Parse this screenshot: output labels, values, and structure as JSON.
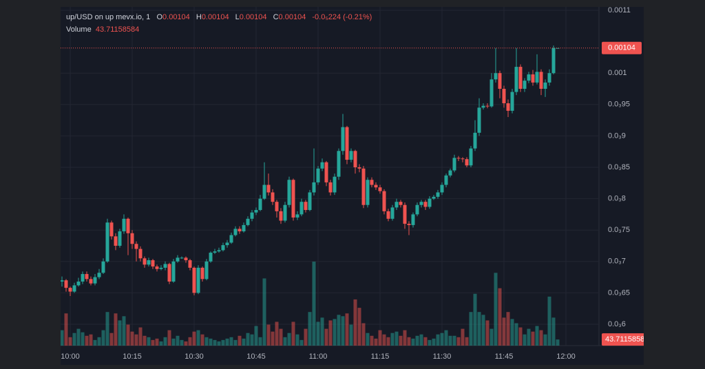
{
  "chart_data": {
    "type": "candlestick",
    "title": "up/USD on up mevx.io, 1",
    "ohlc_letters": [
      "O",
      "H",
      "L",
      "C"
    ],
    "change": "-0.0₅224 (-0.21%)",
    "volume_label": "Volume",
    "up_color": "#26a69a",
    "down_color": "#ef5350",
    "grid": true,
    "categories": [
      null,
      null,
      "10:00",
      null,
      null,
      null,
      null,
      null,
      null,
      null,
      null,
      null,
      null,
      null,
      null,
      null,
      null,
      "10:15",
      null,
      null,
      null,
      null,
      null,
      null,
      null,
      null,
      null,
      null,
      null,
      null,
      null,
      null,
      "10:30",
      null,
      null,
      null,
      null,
      null,
      null,
      null,
      null,
      null,
      null,
      null,
      null,
      null,
      null,
      "10:45",
      null,
      null,
      null,
      null,
      null,
      null,
      null,
      null,
      null,
      null,
      null,
      null,
      null,
      null,
      "11:00",
      null,
      null,
      null,
      null,
      null,
      null,
      null,
      null,
      null,
      null,
      null,
      null,
      null,
      null,
      "11:15",
      null,
      null,
      null,
      null,
      null,
      null,
      null,
      null,
      null,
      null,
      null,
      null,
      null,
      null,
      "11:30",
      null,
      null,
      null,
      null,
      null,
      null,
      null,
      null,
      null,
      null,
      null,
      null,
      null,
      null,
      "11:45",
      null,
      null,
      null,
      null,
      null,
      null,
      null,
      null,
      null,
      null,
      null,
      null,
      null,
      null,
      "12:00"
    ],
    "open": [
      0.000668,
      0.00067,
      0.000658,
      0.000652,
      0.000662,
      0.000668,
      0.00068,
      0.000672,
      0.000665,
      0.000675,
      0.000682,
      0.0007,
      0.000762,
      0.00074,
      0.000725,
      0.000748,
      0.000768,
      0.000745,
      0.000728,
      0.00072,
      0.000705,
      0.000695,
      0.000702,
      0.000692,
      0.000688,
      0.00069,
      0.000696,
      0.000668,
      0.0007,
      0.000706,
      0.000706,
      0.000702,
      0.00069,
      0.00065,
      0.00069,
      0.000672,
      0.0007,
      0.000714,
      0.000716,
      0.000718,
      0.000726,
      0.00073,
      0.000742,
      0.000752,
      0.000748,
      0.000758,
      0.000768,
      0.000778,
      0.000782,
      0.0008,
      0.000822,
      0.00081,
      0.000795,
      0.00078,
      0.000765,
      0.00079,
      0.00083,
      0.00077,
      0.000775,
      0.000795,
      0.000782,
      0.00081,
      0.000826,
      0.000848,
      0.000858,
      0.000826,
      0.00081,
      0.000835,
      0.000876,
      0.000914,
      0.000862,
      0.000876,
      0.00085,
      0.000848,
      0.00079,
      0.00083,
      0.000822,
      0.000818,
      0.000812,
      0.00078,
      0.000768,
      0.000786,
      0.000795,
      0.00079,
      0.00076,
      0.000758,
      0.000775,
      0.00079,
      0.000795,
      0.000787,
      0.0008,
      0.000803,
      0.00081,
      0.000822,
      0.000837,
      0.000845,
      0.000865,
      0.000864,
      0.000863,
      0.000853,
      0.00088,
      0.000905,
      0.000945,
      0.000948,
      0.000947,
      0.00099,
      0.001,
      0.000975,
      0.000952,
      0.00094,
      0.00097,
      0.00101,
      0.000975,
      0.000988,
      0.000998,
      0.000985,
      0.001002,
      0.000975,
      0.000985,
      0.001,
      0.00104,
      null,
      null
    ],
    "high": [
      0.000676,
      0.000672,
      0.00066,
      0.000666,
      0.000674,
      0.000684,
      0.000684,
      0.000676,
      0.00068,
      0.000688,
      0.000705,
      0.000768,
      0.000765,
      0.000745,
      0.000752,
      0.000775,
      0.00077,
      0.00075,
      0.000732,
      0.000724,
      0.000708,
      0.000706,
      0.000704,
      0.000695,
      0.000694,
      0.0007,
      0.000698,
      0.000704,
      0.00071,
      0.000708,
      0.000708,
      0.000704,
      0.000692,
      0.000694,
      0.000692,
      0.000704,
      0.000716,
      0.00072,
      0.000722,
      0.00073,
      0.000734,
      0.000746,
      0.000756,
      0.000756,
      0.000762,
      0.000772,
      0.000782,
      0.000786,
      0.000806,
      0.000858,
      0.00084,
      0.000815,
      0.000798,
      0.000785,
      0.000795,
      0.000835,
      0.000832,
      0.00078,
      0.0008,
      0.000798,
      0.000814,
      0.00088,
      0.000852,
      0.000864,
      0.00086,
      0.00083,
      0.00084,
      0.00088,
      0.000935,
      0.000916,
      0.00088,
      0.000878,
      0.000855,
      0.000852,
      0.000834,
      0.000834,
      0.000826,
      0.000822,
      0.000815,
      0.000784,
      0.00079,
      0.0008,
      0.000798,
      0.000794,
      0.000764,
      0.000778,
      0.000794,
      0.000798,
      0.000798,
      0.000804,
      0.000806,
      0.000814,
      0.000826,
      0.00084,
      0.000848,
      0.00087,
      0.000868,
      0.000866,
      0.000866,
      0.000884,
      0.000925,
      0.00096,
      0.000952,
      0.000952,
      0.001,
      0.00104,
      0.001004,
      0.00098,
      0.000958,
      0.000975,
      0.00104,
      0.001014,
      0.000992,
      0.001002,
      0.001005,
      0.00103,
      0.001006,
      0.00099,
      0.001006,
      0.001044,
      0.00104,
      null,
      null
    ],
    "low": [
      0.00066,
      0.000652,
      0.000645,
      0.00065,
      0.00066,
      0.000664,
      0.000668,
      0.000662,
      0.000662,
      0.000672,
      0.00068,
      0.000698,
      0.000735,
      0.000718,
      0.000722,
      0.000744,
      0.00071,
      0.00072,
      0.0007,
      0.0007,
      0.00069,
      0.000692,
      0.000688,
      0.000684,
      0.000686,
      0.000686,
      0.000664,
      0.000666,
      0.000698,
      0.000704,
      0.000698,
      0.000686,
      0.000646,
      0.000648,
      0.000668,
      0.00067,
      0.000698,
      0.000712,
      0.000714,
      0.000716,
      0.000722,
      0.000728,
      0.00074,
      0.000744,
      0.000746,
      0.000756,
      0.000764,
      0.000774,
      0.00078,
      0.000798,
      0.000805,
      0.00079,
      0.00077,
      0.00076,
      0.000762,
      0.000786,
      0.000765,
      0.000766,
      0.000772,
      0.000778,
      0.00078,
      0.000805,
      0.000822,
      0.000844,
      0.00082,
      0.000805,
      0.000806,
      0.00083,
      0.00087,
      0.000855,
      0.000858,
      0.00084,
      0.000842,
      0.000785,
      0.000786,
      0.000818,
      0.000814,
      0.000808,
      0.000775,
      0.000764,
      0.000765,
      0.000782,
      0.000786,
      0.000752,
      0.000742,
      0.000754,
      0.000772,
      0.000786,
      0.000782,
      0.000784,
      0.000798,
      0.0008,
      0.000806,
      0.000818,
      0.000834,
      0.000842,
      0.00086,
      0.000858,
      0.00085,
      0.00085,
      0.000876,
      0.0009,
      0.000942,
      0.000944,
      0.000945,
      0.000985,
      0.00096,
      0.000945,
      0.00093,
      0.000936,
      0.000965,
      0.00097,
      0.00097,
      0.000984,
      0.00098,
      0.000982,
      0.000965,
      0.000962,
      0.00098,
      0.000998,
      0.00104,
      null,
      null
    ],
    "close": [
      0.00067,
      0.000658,
      0.000652,
      0.000662,
      0.000668,
      0.00068,
      0.000672,
      0.000665,
      0.000675,
      0.000682,
      0.0007,
      0.000762,
      0.00074,
      0.000725,
      0.000748,
      0.000768,
      0.000745,
      0.000728,
      0.00072,
      0.000705,
      0.000695,
      0.000702,
      0.000692,
      0.000688,
      0.00069,
      0.000696,
      0.000668,
      0.0007,
      0.000706,
      0.000706,
      0.000702,
      0.00069,
      0.00065,
      0.00069,
      0.000672,
      0.0007,
      0.000714,
      0.000716,
      0.000718,
      0.000726,
      0.00073,
      0.000742,
      0.000752,
      0.000748,
      0.000758,
      0.000768,
      0.000778,
      0.000782,
      0.0008,
      0.000822,
      0.00081,
      0.000795,
      0.00078,
      0.000765,
      0.00079,
      0.00083,
      0.00077,
      0.000775,
      0.000795,
      0.000782,
      0.00081,
      0.000826,
      0.000848,
      0.000858,
      0.000826,
      0.00081,
      0.000835,
      0.000876,
      0.000914,
      0.000862,
      0.000876,
      0.00085,
      0.000848,
      0.00079,
      0.00083,
      0.000822,
      0.000818,
      0.000812,
      0.00078,
      0.000768,
      0.000786,
      0.000795,
      0.00079,
      0.00076,
      0.000758,
      0.000775,
      0.00079,
      0.000795,
      0.000787,
      0.0008,
      0.000803,
      0.00081,
      0.000822,
      0.000837,
      0.000845,
      0.000865,
      0.000864,
      0.000863,
      0.000853,
      0.00088,
      0.000905,
      0.000945,
      0.000948,
      0.000947,
      0.00099,
      0.001,
      0.000975,
      0.000952,
      0.00094,
      0.00097,
      0.00101,
      0.000975,
      0.000988,
      0.000998,
      0.000985,
      0.001002,
      0.000975,
      0.000985,
      0.001,
      0.00104,
      0.00104,
      null,
      null
    ],
    "volume": [
      110,
      230,
      60,
      90,
      120,
      95,
      70,
      80,
      40,
      60,
      110,
      240,
      90,
      230,
      180,
      210,
      150,
      100,
      80,
      130,
      70,
      60,
      40,
      50,
      30,
      60,
      110,
      50,
      70,
      40,
      30,
      60,
      100,
      110,
      80,
      60,
      50,
      40,
      30,
      40,
      50,
      60,
      40,
      70,
      50,
      90,
      80,
      140,
      60,
      480,
      150,
      100,
      170,
      120,
      60,
      90,
      170,
      80,
      40,
      120,
      240,
      600,
      170,
      200,
      120,
      180,
      190,
      220,
      210,
      230,
      150,
      330,
      270,
      160,
      90,
      70,
      50,
      110,
      80,
      60,
      90,
      100,
      70,
      110,
      60,
      50,
      70,
      80,
      60,
      40,
      50,
      80,
      90,
      110,
      70,
      70,
      60,
      120,
      60,
      240,
      370,
      240,
      220,
      180,
      120,
      520,
      410,
      200,
      240,
      190,
      160,
      130,
      80,
      120,
      100,
      140,
      110,
      80,
      350,
      200,
      43.71158584,
      null,
      null
    ],
    "ylim": [
      0.000566,
      0.0011055
    ],
    "vlim": [
      0,
      2420
    ],
    "yticks": [
      {
        "value": 0.0006,
        "label": "0.0₃6"
      },
      {
        "value": 0.00065,
        "label": "0.0₃65"
      },
      {
        "value": 0.0007,
        "label": "0.0₃7"
      },
      {
        "value": 0.00075,
        "label": "0.0₃75"
      },
      {
        "value": 0.0008,
        "label": "0.0₃8"
      },
      {
        "value": 0.00085,
        "label": "0.0₃85"
      },
      {
        "value": 0.0009,
        "label": "0.0₃9"
      },
      {
        "value": 0.00095,
        "label": "0.0₃95"
      },
      0.001,
      0.0011
    ]
  }
}
